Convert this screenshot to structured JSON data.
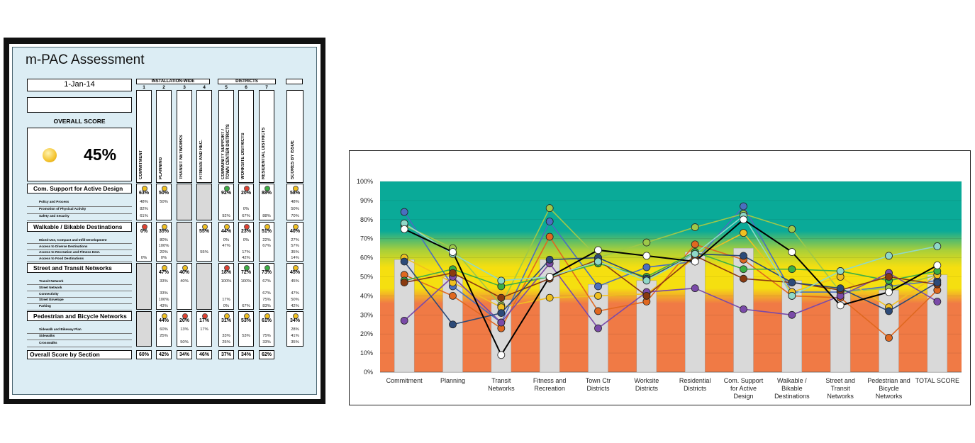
{
  "assessment": {
    "title": "m-PAC Assessment",
    "date": "1-Jan-14",
    "overall_label": "OVERALL SCORE",
    "overall_score": "45%",
    "group_installation": "INSTALLATION-WIDE",
    "group_districts": "DISTRICTS",
    "columns": [
      {
        "num": "1",
        "name": "COMMITMENT"
      },
      {
        "num": "2",
        "name": "PLANNING"
      },
      {
        "num": "3",
        "name": "TRANSIT NETWORKS"
      },
      {
        "num": "4",
        "name": "FITNESS AND REC."
      },
      {
        "num": "5",
        "name": "COMMUNITY SUPPORT /\nTOWN CENTER DISTRICTS"
      },
      {
        "num": "6",
        "name": "WORKSITE DISTRICTS"
      },
      {
        "num": "7",
        "name": "RESIDENTIAL DISTRICTS"
      }
    ],
    "scores_col": "SCORES BY ISSUE",
    "sections": [
      {
        "title": "Com. Support for Active Design",
        "scores": [
          "63%",
          "50%",
          "",
          "",
          "92%",
          "20%",
          "88%"
        ],
        "dots": [
          "#f0c020",
          "#f0c020",
          "",
          "",
          "#3cb044",
          "#e04030",
          "#3cb044"
        ],
        "issue": "58%",
        "issue_dot": "#f0c020",
        "rows": [
          {
            "label": "Policy and Process",
            "vals": [
              "48%",
              "50%",
              "",
              "",
              "",
              "",
              ""
            ],
            "issue": "48%"
          },
          {
            "label": "Promotion of Physical Activity",
            "vals": [
              "82%",
              "",
              "",
              "",
              "",
              "0%",
              ""
            ],
            "issue": "50%"
          },
          {
            "label": "Safety and Security",
            "vals": [
              "61%",
              "",
              "",
              "",
              "92%",
              "67%",
              "88%"
            ],
            "issue": "70%"
          }
        ]
      },
      {
        "title": "Walkable / Bikable Destinations",
        "scores": [
          "0%",
          "35%",
          "",
          "55%",
          "44%",
          "23%",
          "51%"
        ],
        "dots": [
          "#e04030",
          "#f0c020",
          "",
          "#f0c020",
          "#f0c020",
          "#e04030",
          "#f0c020"
        ],
        "issue": "40%",
        "issue_dot": "#f0c020",
        "rows": [
          {
            "label": "Mixed-Use, Compact and Infill Development",
            "vals": [
              "",
              "80%",
              "",
              "",
              "0%",
              "0%",
              "22%"
            ],
            "issue": "27%"
          },
          {
            "label": "Access to Diverse Destinations",
            "vals": [
              "",
              "100%",
              "",
              "",
              "47%",
              "",
              "67%"
            ],
            "issue": "57%"
          },
          {
            "label": "Access to Recreation and Fitness Dest.",
            "vals": [
              "",
              "20%",
              "",
              "55%",
              "",
              "17%",
              ""
            ],
            "issue": "35%"
          },
          {
            "label": "Access to Food Destinations",
            "vals": [
              "0%",
              "0%",
              "",
              "",
              "",
              "42%",
              ""
            ],
            "issue": "14%"
          }
        ]
      },
      {
        "title": "Street and Transit Networks",
        "scores": [
          "",
          "47%",
          "40%",
          "",
          "18%",
          "72%",
          "73%"
        ],
        "dots": [
          "",
          "#f0c020",
          "#f0c020",
          "",
          "#e04030",
          "#3cb044",
          "#3cb044"
        ],
        "issue": "45%",
        "issue_dot": "#f0c020",
        "rows": [
          {
            "label": "Transit Network",
            "vals": [
              "",
              "33%",
              "40%",
              "",
              "100%",
              "100%",
              "67%"
            ],
            "issue": "45%"
          },
          {
            "label": "Street Network",
            "vals": [
              "",
              "",
              "",
              "",
              "",
              "",
              ""
            ],
            "issue": ""
          },
          {
            "label": "Connectivity",
            "vals": [
              "",
              "33%",
              "",
              "",
              "",
              "",
              "67%"
            ],
            "issue": "47%"
          },
          {
            "label": "Street Envelope",
            "vals": [
              "",
              "100%",
              "",
              "",
              "17%",
              "",
              "75%"
            ],
            "issue": "50%"
          },
          {
            "label": "Parking",
            "vals": [
              "",
              "43%",
              "",
              "",
              "0%",
              "67%",
              "83%"
            ],
            "issue": "42%"
          }
        ]
      },
      {
        "title": "Pedestrian and Bicycle Networks",
        "scores": [
          "",
          "44%",
          "20%",
          "17%",
          "31%",
          "53%",
          "61%"
        ],
        "dots": [
          "",
          "#f0c020",
          "#e04030",
          "#e04030",
          "#f0c020",
          "#f0c020",
          "#f0c020"
        ],
        "issue": "34%",
        "issue_dot": "#f0c020",
        "rows": [
          {
            "label": "Sidewalk and Bikeway Plan",
            "vals": [
              "",
              "60%",
              "13%",
              "17%",
              "",
              "",
              ""
            ],
            "issue": "28%"
          },
          {
            "label": "Sidewalks",
            "vals": [
              "",
              "25%",
              "",
              "",
              "33%",
              "53%",
              "75%"
            ],
            "issue": "41%"
          },
          {
            "label": "Crosswalks",
            "vals": [
              "",
              "",
              "50%",
              "",
              "25%",
              "",
              "33%"
            ],
            "issue": "35%"
          }
        ]
      }
    ],
    "summary_label": "Overall Score by Section",
    "summary": [
      "60%",
      "42%",
      "34%",
      "46%",
      "37%",
      "34%",
      "62%"
    ]
  },
  "chart_data": {
    "type": "bar+line",
    "categories": [
      "Commitment",
      "Planning",
      "Transit\nNetworks",
      "Fitness and\nRecreation",
      "Town Ctr\nDistricts",
      "Worksite\nDistricts",
      "Residential\nDistricts",
      "Com. Support\nfor Active\nDesign",
      "Walkable /\nBikable\nDestinations",
      "Street and\nTransit\nNetworks",
      "Pedestrian and\nBicycle\nNetworks",
      "TOTAL SCORE"
    ],
    "ylim": [
      0,
      100
    ],
    "yticks": [
      "0%",
      "10%",
      "20%",
      "30%",
      "40%",
      "50%",
      "60%",
      "70%",
      "80%",
      "90%",
      "100%"
    ],
    "bands": [
      {
        "from": 0,
        "to": 36,
        "color": "#f07a45"
      },
      {
        "from": 36,
        "to": 68,
        "color": "#f5df10"
      },
      {
        "from": 68,
        "to": 100,
        "color": "#0aaa98"
      }
    ],
    "bar_color": "#d9d9d9",
    "bars": [
      59,
      50,
      38,
      59,
      46,
      48,
      63,
      65,
      48,
      44,
      43,
      51
    ],
    "series": [
      {
        "color": "#4a6fc0",
        "values": [
          84,
          45,
          26,
          79,
          45,
          55,
          58,
          87,
          42,
          42,
          45,
          48
        ]
      },
      {
        "color": "#9dc84a",
        "values": [
          77,
          65,
          35,
          86,
          60,
          68,
          76,
          83,
          75,
          42,
          44,
          51
        ]
      },
      {
        "color": "#f0c020",
        "values": [
          60,
          47,
          34,
          39,
          40,
          41,
          60,
          73,
          42,
          50,
          34,
          51
        ]
      },
      {
        "color": "#e06820",
        "values": [
          51,
          40,
          23,
          71,
          32,
          37,
          67,
          59,
          40,
          39,
          18,
          43
        ]
      },
      {
        "color": "#3cb044",
        "values": [
          48,
          54,
          45,
          50,
          57,
          50,
          63,
          54,
          54,
          53,
          48,
          53
        ]
      },
      {
        "color": "#7a4aa8",
        "values": [
          27,
          50,
          26,
          57,
          23,
          42,
          44,
          33,
          30,
          40,
          52,
          37
        ]
      },
      {
        "color": "#8a3a10",
        "values": [
          47,
          52,
          39,
          49,
          59,
          40,
          61,
          49,
          47,
          43,
          50,
          46
        ]
      },
      {
        "color": "#2c4a78",
        "values": [
          58,
          25,
          31,
          59,
          60,
          49,
          62,
          61,
          47,
          44,
          32,
          47
        ]
      },
      {
        "color": "#8fd8c8",
        "values": [
          78,
          62,
          48,
          50,
          58,
          48,
          62,
          82,
          40,
          53,
          61,
          66
        ]
      },
      {
        "color": "#000000",
        "values": [
          75,
          63,
          9,
          50,
          64,
          61,
          58,
          80,
          63,
          35,
          42,
          56
        ]
      }
    ]
  }
}
